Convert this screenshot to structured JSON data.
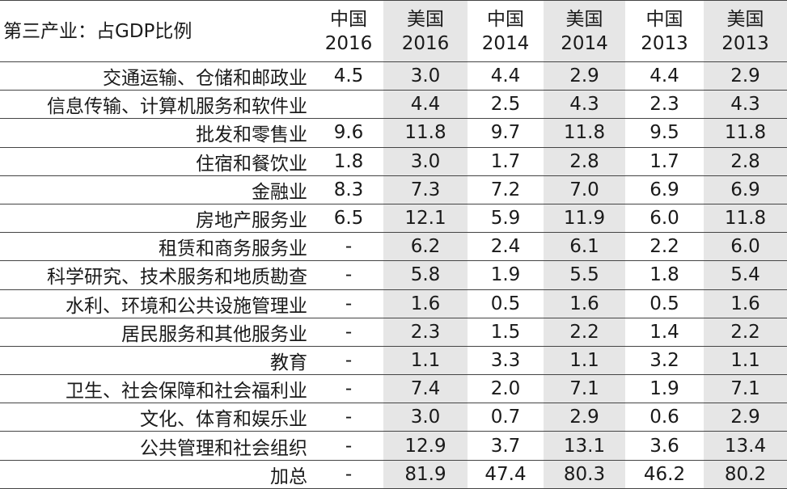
{
  "table": {
    "title": "第三产业：占GDP比例",
    "columns": [
      {
        "country": "中国",
        "year": "2016"
      },
      {
        "country": "美国",
        "year": "2016"
      },
      {
        "country": "中国",
        "year": "2014"
      },
      {
        "country": "美国",
        "year": "2014"
      },
      {
        "country": "中国",
        "year": "2013"
      },
      {
        "country": "美国",
        "year": "2013"
      }
    ],
    "rows": [
      [
        "交通运输、仓储和邮政业",
        "4.5",
        "3.0",
        "4.4",
        "2.9",
        "4.4",
        "2.9"
      ],
      [
        "信息传输、计算机服务和软件业",
        null,
        "4.4",
        "2.5",
        "4.3",
        "2.3",
        "4.3"
      ],
      [
        "批发和零售业",
        "9.6",
        "11.8",
        "9.7",
        "11.8",
        "9.5",
        "11.8"
      ],
      [
        "住宿和餐饮业",
        "1.8",
        "3.0",
        "1.7",
        "2.8",
        "1.7",
        "2.8"
      ],
      [
        "金融业",
        "8.3",
        "7.3",
        "7.2",
        "7.0",
        "6.9",
        "6.9"
      ],
      [
        "房地产服务业",
        "6.5",
        "12.1",
        "5.9",
        "11.9",
        "6.0",
        "11.8"
      ],
      [
        "租赁和商务服务业",
        "-",
        "6.2",
        "2.4",
        "6.1",
        "2.2",
        "6.0"
      ],
      [
        "科学研究、技术服务和地质勘查",
        "-",
        "5.8",
        "1.9",
        "5.5",
        "1.8",
        "5.4"
      ],
      [
        "水利、环境和公共设施管理业",
        "-",
        "1.6",
        "0.5",
        "1.6",
        "0.5",
        "1.6"
      ],
      [
        "居民服务和其他服务业",
        "-",
        "2.3",
        "1.5",
        "2.2",
        "1.4",
        "2.2"
      ],
      [
        "教育",
        "-",
        "1.1",
        "3.3",
        "1.1",
        "3.2",
        "1.1"
      ],
      [
        "卫生、社会保障和社会福利业",
        "-",
        "7.4",
        "2.0",
        "7.1",
        "1.9",
        "7.1"
      ],
      [
        "文化、体育和娱乐业",
        "-",
        "3.0",
        "0.7",
        "2.9",
        "0.6",
        "2.9"
      ],
      [
        "公共管理和社会组织",
        "-",
        "12.9",
        "3.7",
        "13.1",
        "3.6",
        "13.4"
      ],
      [
        "加总",
        "-",
        "81.9",
        "47.4",
        "80.3",
        "46.2",
        "80.2"
      ]
    ]
  }
}
